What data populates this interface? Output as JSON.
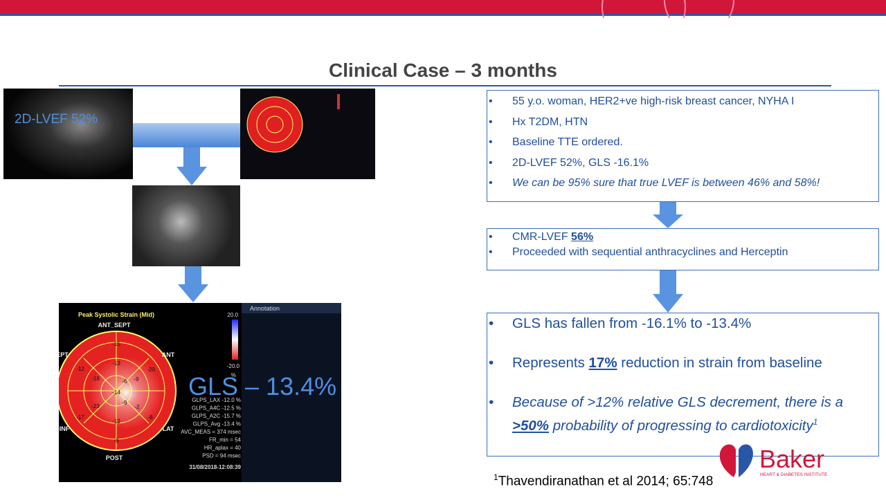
{
  "header": {
    "title": "Clinical Case – 3 months"
  },
  "images": {
    "echo_label": "2D-LVEF 52%",
    "gls_overlay": "GLS – 13.4%"
  },
  "strain_map": {
    "title": "Peak Systolic Strain (Mid)",
    "annotation": "Annotation",
    "scale_top": "20.0",
    "scale_bottom": "-20.0",
    "scale_unit": "%",
    "directions": [
      "ANT_SEPT",
      "ANT",
      "LAT",
      "POST",
      "INF",
      "EPT"
    ],
    "segments": [
      "-15",
      "-12",
      "-13",
      "-20",
      "-18",
      "-6",
      "-9",
      "-14",
      "-9",
      "-23",
      "-2",
      "-8",
      "-17",
      "-12",
      "-9"
    ],
    "stats": [
      "GLPS_LAX -12.0 %",
      "GLPS_A4C -12.5 %",
      "GLPS_A2C -15.7 %",
      "GLPS_Avg -13.4 %",
      "AVC_MEAS = 374 msec",
      "FR_min = 54",
      "HR_aplax = 40",
      "PSD = 94 msec"
    ],
    "timestamp": "31/08/2018-12:08:39"
  },
  "box1": {
    "items": [
      "55 y.o. woman, HER2+ve high-risk breast cancer, NYHA I",
      "Hx T2DM, HTN",
      "Baseline TTE ordered.",
      "2D-LVEF 52%, GLS -16.1%",
      "We can be 95% sure that true LVEF is between 46% and 58%!"
    ]
  },
  "box2": {
    "items": [
      [
        "CMR-LVEF ",
        "56%"
      ],
      [
        "Proceeded with sequential anthracyclines and Herceptin"
      ]
    ]
  },
  "box3": {
    "items": [
      [
        "GLS has fallen from -16.1% to -13.4%"
      ],
      [
        "Represents ",
        "17%",
        " reduction in strain from baseline"
      ],
      [
        "Because of >12% relative GLS decrement, there is a ",
        ">50%",
        " probability of progressing to cardiotoxicity",
        "1"
      ]
    ]
  },
  "footnote": {
    "marker": "1",
    "text": "Thavendiranathan et al 2014; 65:748"
  },
  "logo": {
    "name": "Baker",
    "tagline": "HEART & DIABETES INSTITUTE"
  }
}
